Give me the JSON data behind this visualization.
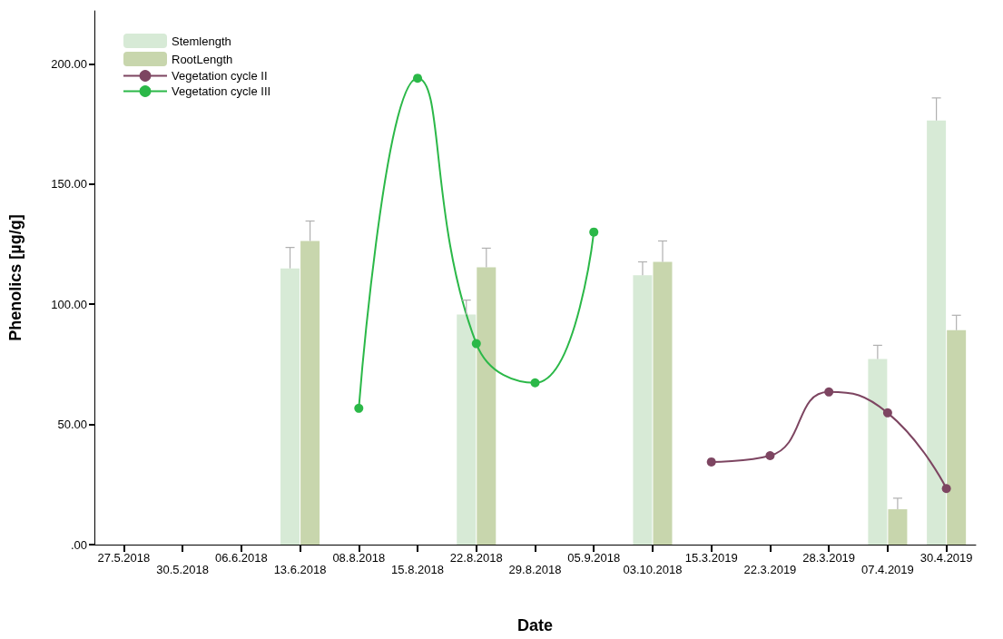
{
  "chart_data": {
    "type": "bar",
    "xlabel": "Date",
    "ylabel": "Phenolics [µg/g]",
    "categories": [
      "27.5.2018",
      "30.5.2018",
      "06.6.2018",
      "13.6.2018",
      "08.8.2018",
      "15.8.2018",
      "22.8.2018",
      "29.8.2018",
      "05.9.2018",
      "03.10.2018",
      "15.3.2019",
      "22.3.2019",
      "28.3.2019",
      "07.4.2019",
      "30.4.2019"
    ],
    "series": [
      {
        "name": "Stemlength",
        "color": "#d7ead6",
        "values": [
          null,
          null,
          null,
          114.9,
          null,
          null,
          95.7,
          null,
          null,
          112.0,
          null,
          null,
          null,
          77.2,
          176.4
        ],
        "errors": [
          null,
          null,
          null,
          [
            114.9,
            123.6
          ],
          null,
          null,
          [
            95.7,
            101.7
          ],
          null,
          null,
          [
            112.0,
            117.6
          ],
          null,
          null,
          null,
          [
            77.2,
            82.9
          ],
          [
            176.4,
            185.8
          ]
        ]
      },
      {
        "name": "RootLength",
        "color": "#c8d6ad",
        "values": [
          null,
          null,
          null,
          126.3,
          null,
          null,
          115.3,
          null,
          null,
          117.6,
          null,
          null,
          null,
          14.7,
          89.2
        ],
        "errors": [
          null,
          null,
          null,
          [
            126.3,
            134.6
          ],
          null,
          null,
          [
            115.3,
            123.3
          ],
          null,
          null,
          [
            117.6,
            126.3
          ],
          null,
          null,
          null,
          [
            14.7,
            19.3
          ],
          [
            89.2,
            95.4
          ]
        ]
      },
      {
        "name": "Vegetation cycle II",
        "type": "line",
        "color": "#7d4561",
        "values": [
          null,
          null,
          null,
          null,
          null,
          null,
          null,
          null,
          null,
          null,
          34.4,
          37.0,
          63.5,
          54.8,
          23.3
        ]
      },
      {
        "name": "Vegetation cycle III",
        "type": "line",
        "color": "#2bb848",
        "values": [
          null,
          null,
          null,
          null,
          56.7,
          194.0,
          83.6,
          67.3,
          130.0,
          null,
          null,
          null,
          null,
          null,
          null
        ]
      }
    ],
    "ylim": [
      0,
      222
    ],
    "yticks": [
      {
        "value": 0,
        "label": ".00"
      },
      {
        "value": 50,
        "label": "50.00"
      },
      {
        "value": 100,
        "label": "100.00"
      },
      {
        "value": 150,
        "label": "150.00"
      },
      {
        "value": 200,
        "label": "200.00"
      }
    ],
    "grid": false,
    "legend": "top left",
    "marker": "circle",
    "line_style": "solid"
  }
}
